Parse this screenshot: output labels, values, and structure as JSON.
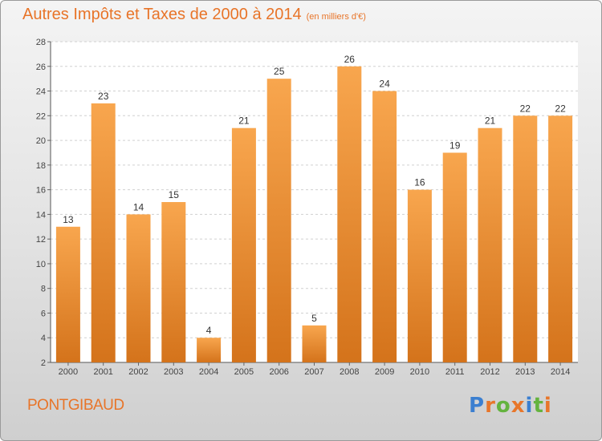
{
  "chart_data": {
    "type": "bar",
    "title": "Autres Impôts et Taxes de 2000 à 2014",
    "subtitle": "(en milliers d'€)",
    "categories": [
      "2000",
      "2001",
      "2002",
      "2003",
      "2004",
      "2005",
      "2006",
      "2007",
      "2008",
      "2009",
      "2010",
      "2011",
      "2012",
      "2013",
      "2014"
    ],
    "values": [
      13,
      23,
      14,
      15,
      4,
      21,
      25,
      5,
      26,
      24,
      16,
      19,
      21,
      22,
      22
    ],
    "ylim": [
      2,
      28
    ],
    "yticks": [
      2,
      4,
      6,
      8,
      10,
      12,
      14,
      16,
      18,
      20,
      22,
      24,
      26,
      28
    ],
    "grid": true,
    "legend": "none",
    "colors": {
      "bar_light": "#f8a64e",
      "bar_dark": "#d4731b",
      "title": "#e87428"
    }
  },
  "commune": "PONTGIBAUD",
  "logo": {
    "text": "Proxiti",
    "colors": [
      "#3b7fd0",
      "#e8762a",
      "#64b33e",
      "#e8762a",
      "#3b7fd0",
      "#64b33e",
      "#e8762a"
    ]
  }
}
